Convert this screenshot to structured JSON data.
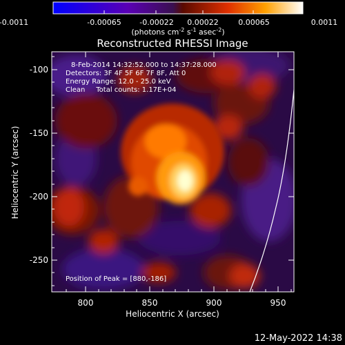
{
  "colorbar": {
    "ticks": [
      "-0.0011",
      "-0.00065",
      "-0.00022",
      "0.00022",
      "0.00065",
      "0.0011"
    ],
    "units_main": "(photons cm",
    "units_exp1": "-2",
    "units_mid": " s",
    "units_exp2": "-1",
    "units_end": " asec",
    "units_exp3": "-2",
    "units_close": ")"
  },
  "title": "Reconstructed RHESSI Image",
  "annotations": {
    "time_range": "8-Feb-2014 14:32:52.000 to 14:37:28.000",
    "detectors": "Detectors: 3F 4F 5F 6F 7F 8F, Att 0",
    "energy": "Energy Range: 12.0 - 25.0 keV",
    "clean": "Clean     Total counts: 1.17E+04",
    "peak": "Position of Peak = [880,-186]"
  },
  "axes": {
    "xlabel": "Heliocentric X (arcsec)",
    "ylabel": "Heliocentric Y (arcsec)",
    "xticks": [
      "800",
      "850",
      "900",
      "950"
    ],
    "yticks": [
      "-100",
      "-150",
      "-200",
      "-250"
    ]
  },
  "footer": "12-May-2022 14:38",
  "colors": {
    "background": "#000000",
    "text": "#ffffff",
    "limb_line": "#ffffff"
  }
}
